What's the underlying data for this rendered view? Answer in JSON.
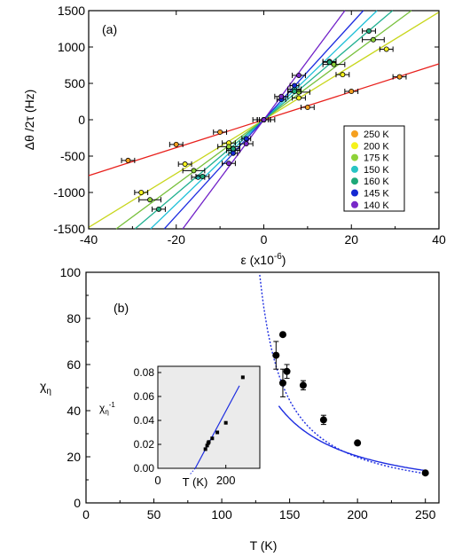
{
  "charts": {
    "a": {
      "panel_label": "(a)",
      "ylabel": "Δθ /2τ (Hz)",
      "xlabel_main": "ε (x10",
      "xlabel_sup": "-6",
      "xlabel_end": ")",
      "xticks": [
        "-40",
        "-20",
        "0",
        "20",
        "40"
      ],
      "yticks": [
        "-1500",
        "-1000",
        "-500",
        "0",
        "500",
        "1000",
        "1500"
      ]
    },
    "b": {
      "panel_label": "(b)",
      "ylabel_main": "χ",
      "ylabel_sub": "η",
      "xlabel": "T (K)",
      "xticks": [
        "0",
        "50",
        "100",
        "150",
        "200",
        "250"
      ],
      "yticks": [
        "0",
        "20",
        "40",
        "60",
        "80",
        "100"
      ]
    },
    "inset": {
      "ylabel_main": "χ",
      "ylabel_sub": "η",
      "ylabel_sup": "-1",
      "xlabel": "T (K)",
      "xticks": [
        "0",
        "200"
      ],
      "yticks": [
        "0.00",
        "0.02",
        "0.04",
        "0.06",
        "0.08"
      ]
    }
  },
  "chart_data": [
    {
      "panel": "a",
      "type": "scatter",
      "xlim": [
        -40,
        40
      ],
      "ylim": [
        -1500,
        1500
      ],
      "legend_position": "lower-right",
      "series": [
        {
          "name": "250 K",
          "color": "#f5a020",
          "slope": 19.2,
          "line_color": "#e8201c",
          "points": [
            [
              -31,
              -560
            ],
            [
              -20,
              -340
            ],
            [
              -10,
              -170
            ],
            [
              0,
              0
            ],
            [
              10,
              170
            ],
            [
              20,
              390
            ],
            [
              31,
              590
            ]
          ],
          "xerr": 1.5
        },
        {
          "name": "200 K",
          "color": "#f5f21c",
          "slope": 37,
          "line_color": "#c8d61c",
          "points": [
            [
              -28,
              -1000
            ],
            [
              -18,
              -610
            ],
            [
              -8,
              -320
            ],
            [
              0,
              0
            ],
            [
              8,
              300
            ],
            [
              18,
              620
            ],
            [
              28,
              970
            ]
          ],
          "xerr": 1.5
        },
        {
          "name": "175 K",
          "color": "#8ed238",
          "slope": 44.5,
          "line_color": "#78c03c",
          "points": [
            [
              -26,
              -1100
            ],
            [
              -16,
              -700
            ],
            [
              -8,
              -370
            ],
            [
              0,
              0
            ],
            [
              8,
              380
            ],
            [
              16,
              760
            ],
            [
              25,
              1100
            ]
          ],
          "xerr": 2.5
        },
        {
          "name": "150 K",
          "color": "#28c4c4",
          "slope": 58,
          "line_color": "#20c0d8",
          "points": [
            [
              -15,
              -790
            ],
            [
              -7,
              -420
            ],
            [
              0,
              0
            ],
            [
              7,
              420
            ],
            [
              15,
              800
            ]
          ],
          "xerr": 1.5
        },
        {
          "name": "160 K",
          "color": "#1ea878",
          "slope": 51,
          "line_color": "#20b090",
          "points": [
            [
              -14,
              -780
            ],
            [
              -7,
              -400
            ],
            [
              0,
              0
            ],
            [
              7,
              390
            ],
            [
              15,
              790
            ],
            [
              24,
              1220
            ],
            [
              -24,
              -1230
            ]
          ],
          "xerr": 1.5
        },
        {
          "name": "145 K",
          "color": "#1428d2",
          "slope": 66,
          "line_color": "#1c2ce0",
          "points": [
            [
              -7,
              -460
            ],
            [
              -4,
              -260
            ],
            [
              0,
              0
            ],
            [
              4,
              280
            ],
            [
              7,
              470
            ]
          ],
          "xerr": 1.0
        },
        {
          "name": "140 K",
          "color": "#7828c8",
          "slope": 81,
          "line_color": "#7020c8",
          "points": [
            [
              -8,
              -600
            ],
            [
              -4,
              -330
            ],
            [
              0,
              0
            ],
            [
              4,
              320
            ],
            [
              8,
              610
            ]
          ],
          "xerr": 1.5
        }
      ]
    },
    {
      "panel": "b",
      "type": "scatter",
      "xlim": [
        0,
        260
      ],
      "ylim": [
        0,
        100
      ],
      "points": [
        {
          "x": 140,
          "y": 64,
          "yerr": 6
        },
        {
          "x": 145,
          "y": 52,
          "yerr": 6
        },
        {
          "x": 145,
          "y": 73,
          "yerr": 0
        },
        {
          "x": 148,
          "y": 57,
          "yerr": 3
        },
        {
          "x": 160,
          "y": 51,
          "yerr": 2
        },
        {
          "x": 175,
          "y": 36,
          "yerr": 2
        },
        {
          "x": 200,
          "y": 26,
          "yerr": 0
        },
        {
          "x": 250,
          "y": 13,
          "yerr": 0
        }
      ],
      "fit_solid": {
        "A": 2270,
        "T0": 88,
        "from": 142,
        "to": 250
      },
      "fit_dotted": {
        "A": 1780,
        "T0": 110,
        "from": 124,
        "to": 250
      }
    },
    {
      "panel": "inset",
      "type": "scatter",
      "xlim": [
        0,
        300
      ],
      "ylim": [
        0,
        0.08
      ],
      "points": [
        [
          140,
          0.016
        ],
        [
          145,
          0.019
        ],
        [
          148,
          0.021
        ],
        [
          150,
          0.022
        ],
        [
          160,
          0.025
        ],
        [
          175,
          0.03
        ],
        [
          200,
          0.038
        ],
        [
          250,
          0.076
        ]
      ],
      "fit_line": {
        "x": [
          110,
          240
        ],
        "y": [
          0.0,
          0.069
        ]
      }
    }
  ]
}
